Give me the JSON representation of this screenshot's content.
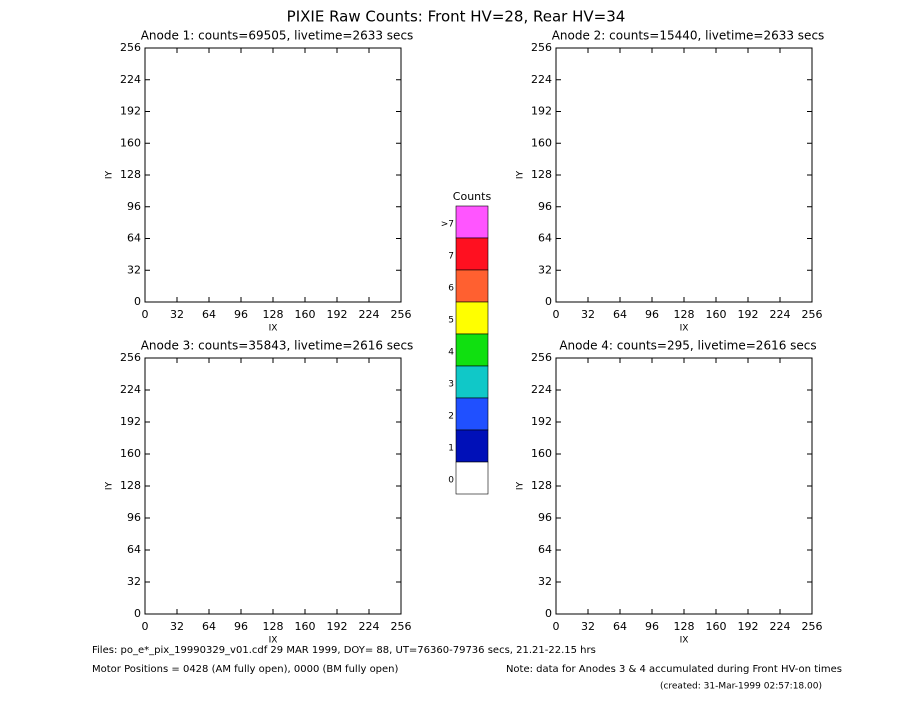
{
  "title": "PIXIE Raw Counts:  Front HV=28, Rear HV=34",
  "chart_data": [
    {
      "type": "heatmap",
      "title": "Anode 1: counts=69505, livetime=2633 secs",
      "xlabel": "IX",
      "ylabel": "IY",
      "xlim": [
        0,
        256
      ],
      "ylim": [
        0,
        256
      ],
      "xticks": [
        0,
        32,
        64,
        96,
        128,
        160,
        192,
        224,
        256
      ],
      "yticks": [
        0,
        32,
        64,
        96,
        128,
        160,
        192,
        224,
        256
      ]
    },
    {
      "type": "heatmap",
      "title": "Anode 2: counts=15440, livetime=2633 secs",
      "xlabel": "IX",
      "ylabel": "IY",
      "xlim": [
        0,
        256
      ],
      "ylim": [
        0,
        256
      ],
      "xticks": [
        0,
        32,
        64,
        96,
        128,
        160,
        192,
        224,
        256
      ],
      "yticks": [
        0,
        32,
        64,
        96,
        128,
        160,
        192,
        224,
        256
      ]
    },
    {
      "type": "heatmap",
      "title": "Anode 3: counts=35843, livetime=2616 secs",
      "xlabel": "IX",
      "ylabel": "IY",
      "xlim": [
        0,
        256
      ],
      "ylim": [
        0,
        256
      ],
      "xticks": [
        0,
        32,
        64,
        96,
        128,
        160,
        192,
        224,
        256
      ],
      "yticks": [
        0,
        32,
        64,
        96,
        128,
        160,
        192,
        224,
        256
      ]
    },
    {
      "type": "heatmap",
      "title": "Anode 4: counts=295, livetime=2616 secs",
      "xlabel": "IX",
      "ylabel": "IY",
      "xlim": [
        0,
        256
      ],
      "ylim": [
        0,
        256
      ],
      "xticks": [
        0,
        32,
        64,
        96,
        128,
        160,
        192,
        224,
        256
      ],
      "yticks": [
        0,
        32,
        64,
        96,
        128,
        160,
        192,
        224,
        256
      ]
    }
  ],
  "colorbar": {
    "title": "Counts",
    "levels": [
      {
        "label": ">7",
        "color": "#ff55ff"
      },
      {
        "label": "7",
        "color": "#ff1020"
      },
      {
        "label": "6",
        "color": "#ff6030"
      },
      {
        "label": "5",
        "color": "#ffff00"
      },
      {
        "label": "4",
        "color": "#10e010"
      },
      {
        "label": "3",
        "color": "#10c8c8"
      },
      {
        "label": "2",
        "color": "#2050ff"
      },
      {
        "label": "1",
        "color": "#0010b8"
      },
      {
        "label": "0",
        "color": "#ffffff"
      }
    ]
  },
  "footer": {
    "files": "Files: po_e*_pix_19990329_v01.cdf    29 MAR 1999, DOY= 88, UT=76360-79736 secs, 21.21-22.15 hrs",
    "motor": "Motor Positions = 0428 (AM fully open), 0000 (BM fully open)",
    "note": "Note: data for Anodes 3 & 4 accumulated during Front HV-on times",
    "created": "(created: 31-Mar-1999 02:57:18.00)"
  }
}
